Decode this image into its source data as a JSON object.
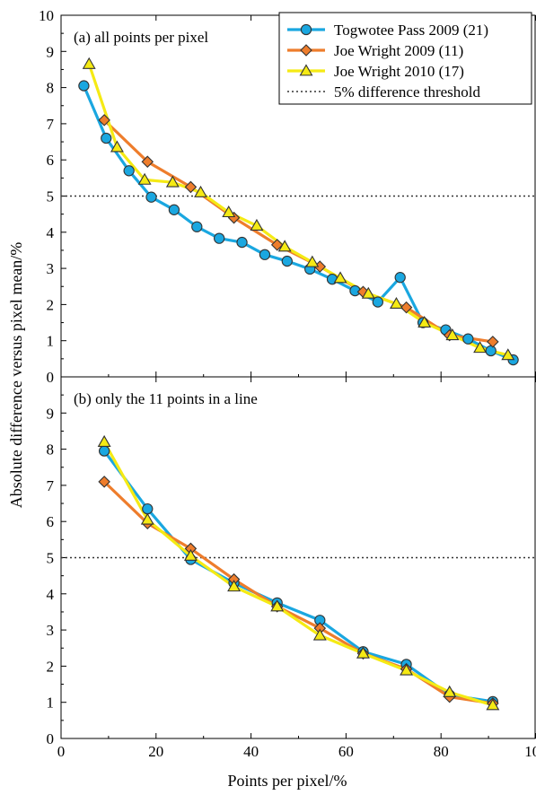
{
  "chart_data": [
    {
      "type": "line",
      "panel_label": "(a) all points per pixel",
      "xlim": [
        0,
        100
      ],
      "ylim": [
        0,
        10
      ],
      "xticks": [
        "0",
        "20",
        "40",
        "60",
        "80",
        "100"
      ],
      "yticks": [
        "0",
        "1",
        "2",
        "3",
        "4",
        "5",
        "6",
        "7",
        "8",
        "9",
        "10"
      ],
      "threshold": 5,
      "series": [
        {
          "name": "Togwotee Pass 2009 (21)",
          "color": "#1aa7e0",
          "marker": "circle",
          "x": [
            4.8,
            9.5,
            14.3,
            19.0,
            23.8,
            28.6,
            33.3,
            38.1,
            42.9,
            47.6,
            52.4,
            57.1,
            61.9,
            66.7,
            71.4,
            76.2,
            81.0,
            85.7,
            90.5,
            95.2
          ],
          "y": [
            8.05,
            6.6,
            5.7,
            4.97,
            4.62,
            4.15,
            3.83,
            3.72,
            3.38,
            3.2,
            2.98,
            2.7,
            2.38,
            2.07,
            2.75,
            1.5,
            1.3,
            1.05,
            0.72,
            0.47
          ]
        },
        {
          "name": "Joe Wright 2009 (11)",
          "color": "#ee7d2c",
          "marker": "diamond",
          "x": [
            9.1,
            18.2,
            27.3,
            36.4,
            45.5,
            54.5,
            63.6,
            72.7,
            81.8,
            90.9
          ],
          "y": [
            7.1,
            5.95,
            5.25,
            4.4,
            3.65,
            3.05,
            2.35,
            1.92,
            1.15,
            0.97
          ]
        },
        {
          "name": "Joe Wright 2010 (17)",
          "color": "#f5ea14",
          "marker": "triangle",
          "x": [
            5.9,
            11.8,
            17.6,
            23.5,
            29.4,
            35.3,
            41.2,
            47.1,
            52.9,
            58.8,
            64.7,
            70.6,
            76.5,
            82.4,
            88.2,
            94.1
          ],
          "y": [
            8.65,
            6.35,
            5.45,
            5.38,
            5.1,
            4.55,
            4.18,
            3.6,
            3.17,
            2.73,
            2.3,
            2.02,
            1.5,
            1.15,
            0.8,
            0.6
          ]
        }
      ]
    },
    {
      "type": "line",
      "panel_label": "(b) only the 11 points in a line",
      "xlim": [
        0,
        100
      ],
      "ylim": [
        0,
        10
      ],
      "xticks": [
        "0",
        "20",
        "40",
        "60",
        "80",
        "100"
      ],
      "yticks": [
        "0",
        "1",
        "2",
        "3",
        "4",
        "5",
        "6",
        "7",
        "8",
        "9"
      ],
      "threshold": 5,
      "series": [
        {
          "name": "Togwotee Pass 2009 (21)",
          "color": "#1aa7e0",
          "marker": "circle",
          "x": [
            9.1,
            18.2,
            27.3,
            36.4,
            45.5,
            54.5,
            63.6,
            72.7,
            81.8,
            90.9
          ],
          "y": [
            7.95,
            6.35,
            4.95,
            4.3,
            3.75,
            3.27,
            2.4,
            2.05,
            1.2,
            1.02
          ]
        },
        {
          "name": "Joe Wright 2009 (11)",
          "color": "#ee7d2c",
          "marker": "diamond",
          "x": [
            9.1,
            18.2,
            27.3,
            36.4,
            45.5,
            54.5,
            63.6,
            72.7,
            81.8,
            90.9
          ],
          "y": [
            7.1,
            5.95,
            5.25,
            4.4,
            3.65,
            3.05,
            2.35,
            1.92,
            1.15,
            0.97
          ]
        },
        {
          "name": "Joe Wright 2010 (17)",
          "color": "#f5ea14",
          "marker": "triangle",
          "x": [
            9.1,
            18.2,
            27.3,
            36.4,
            45.5,
            54.5,
            63.6,
            72.7,
            81.8,
            90.9
          ],
          "y": [
            8.2,
            6.05,
            5.05,
            4.2,
            3.65,
            2.85,
            2.35,
            1.88,
            1.28,
            0.92
          ]
        }
      ]
    }
  ],
  "xlabel": "Points per pixel/%",
  "ylabel": "Absolute difference versus pixel mean/%",
  "legend": {
    "placement": "top-right of panel (a)",
    "entries": [
      {
        "label": "Togwotee Pass 2009 (21)",
        "color": "#1aa7e0",
        "marker": "circle",
        "style": "solid"
      },
      {
        "label": "Joe Wright 2009 (11)",
        "color": "#ee7d2c",
        "marker": "diamond",
        "style": "solid"
      },
      {
        "label": "Joe Wright 2010 (17)",
        "color": "#f5ea14",
        "marker": "triangle",
        "style": "solid"
      },
      {
        "label": "5% difference threshold",
        "color": "#333333",
        "marker": "none",
        "style": "dotted"
      }
    ]
  }
}
